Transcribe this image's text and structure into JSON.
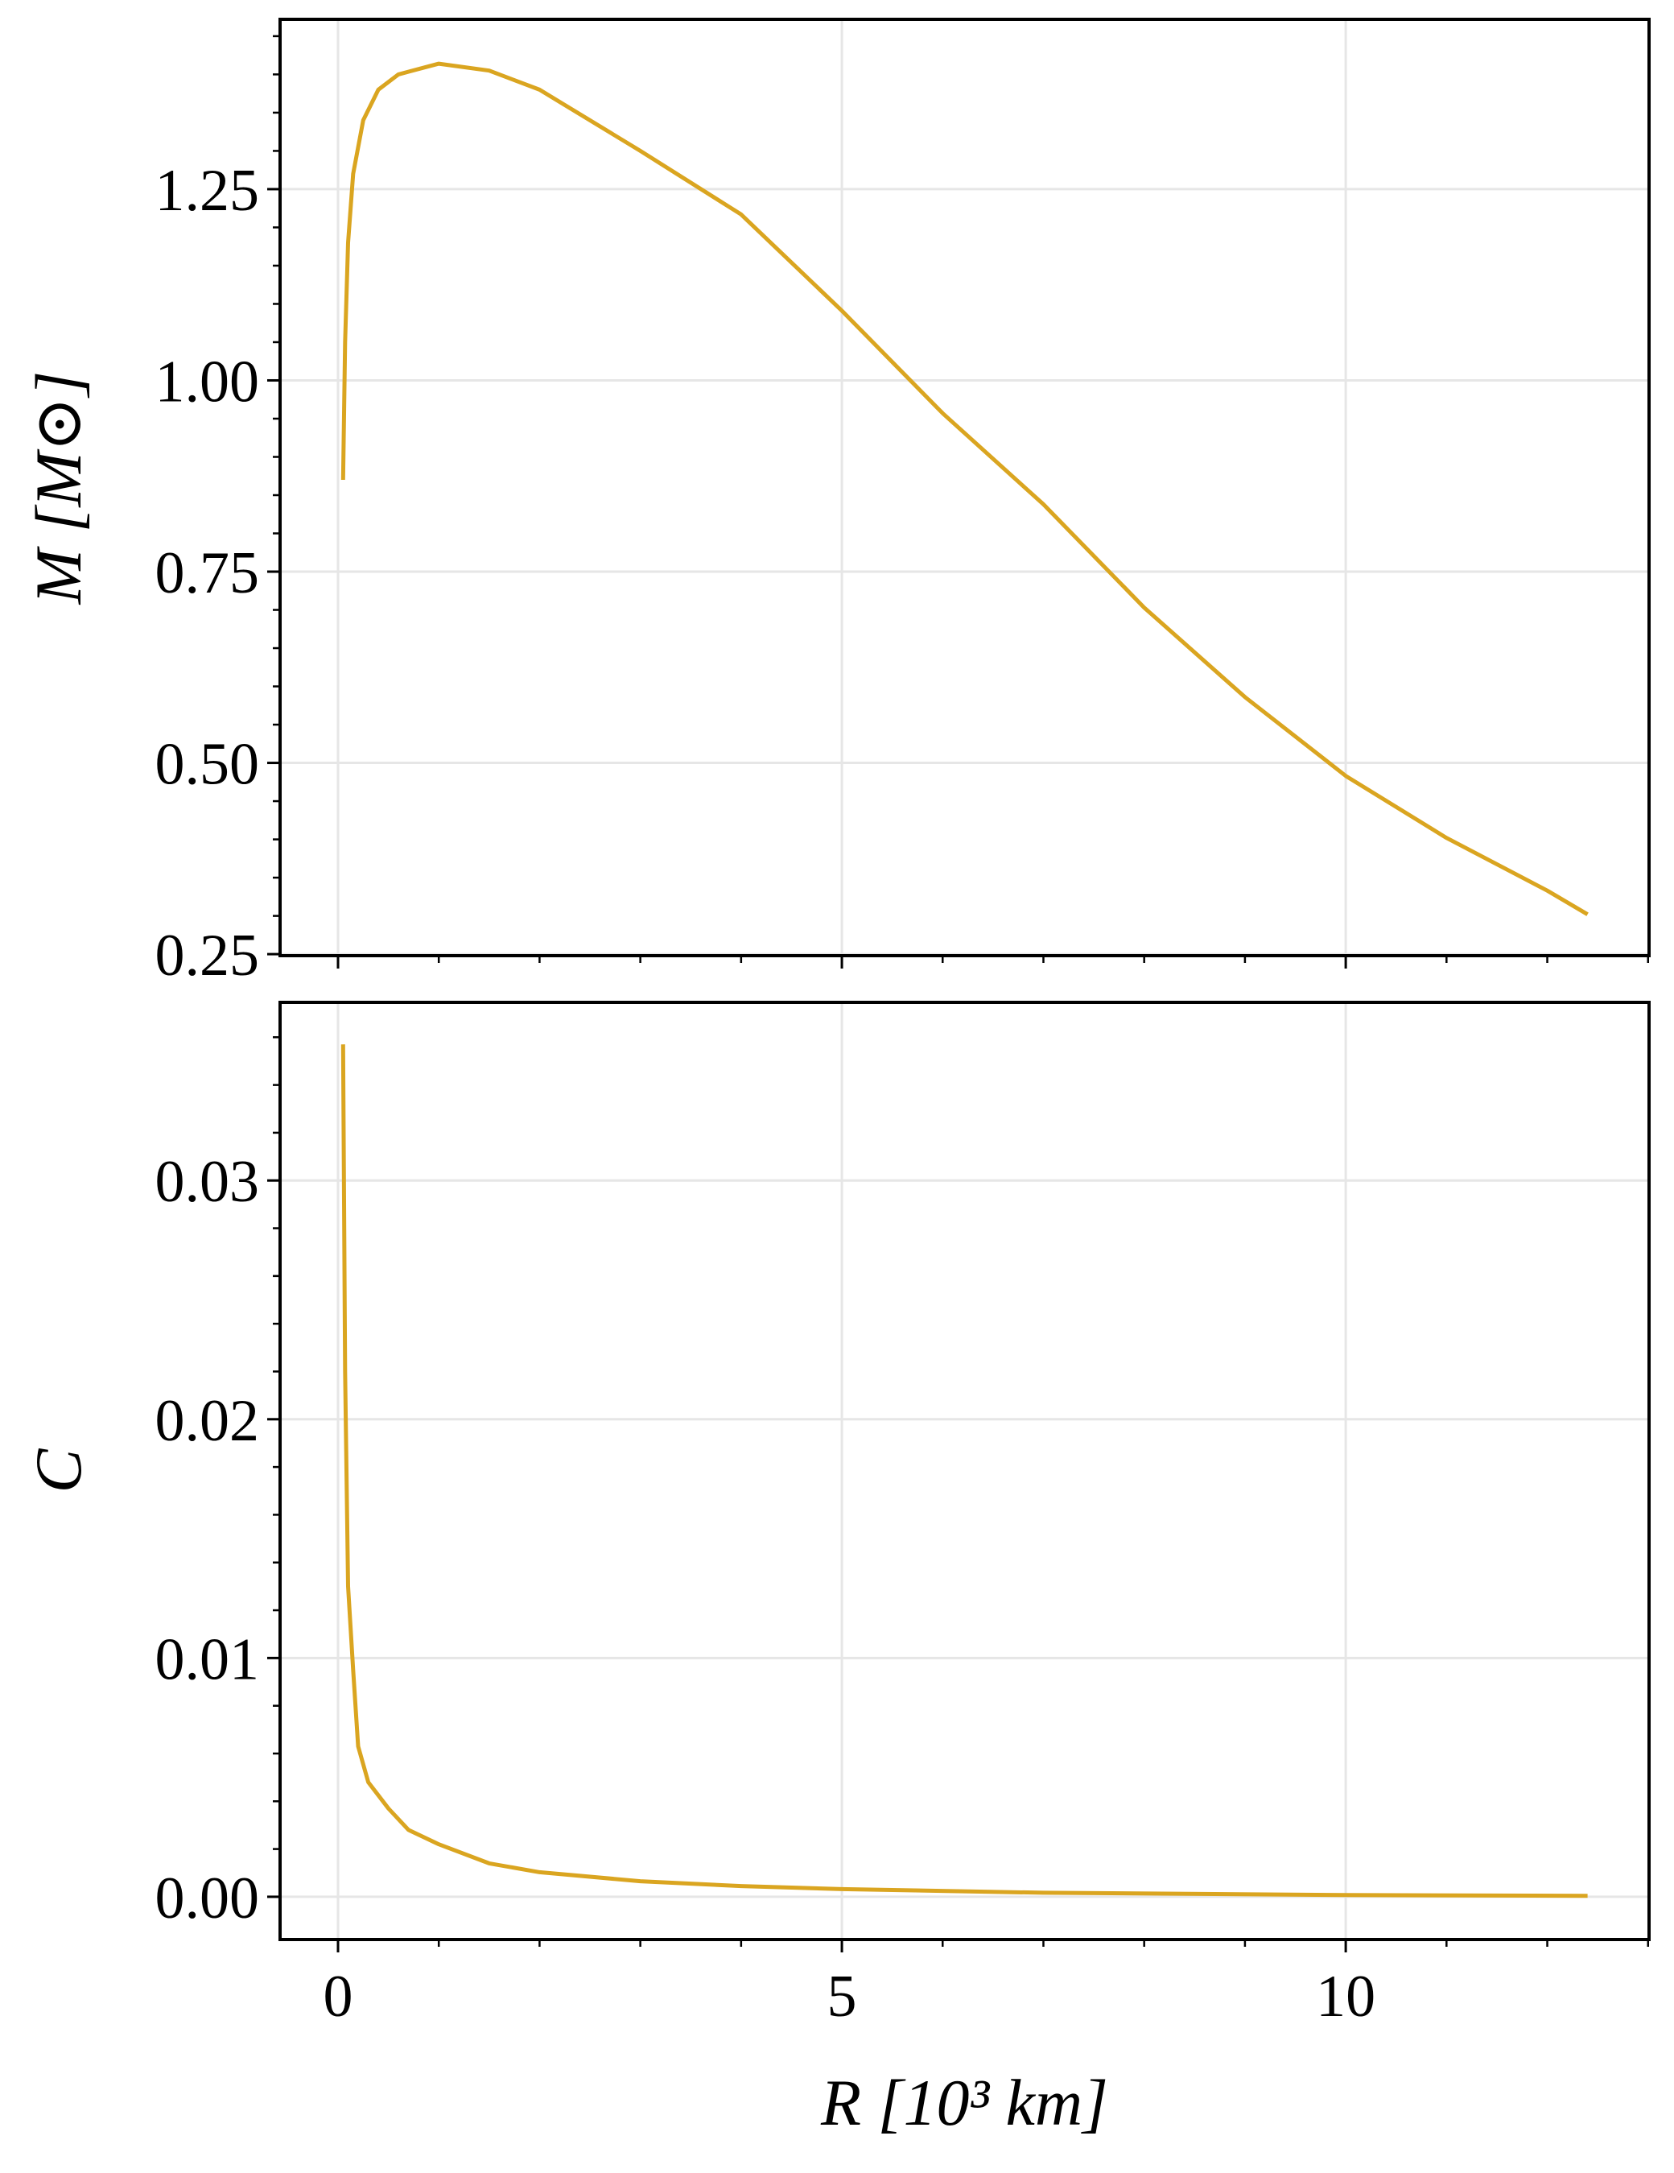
{
  "chart_data": [
    {
      "type": "line",
      "ylabel": "M [M⊙]",
      "x": [
        0.05,
        0.07,
        0.1,
        0.15,
        0.25,
        0.4,
        0.6,
        1.0,
        1.5,
        2,
        3,
        4,
        5,
        6,
        7,
        8,
        9,
        10,
        11,
        12,
        12.4
      ],
      "series": [
        {
          "color": "#daa520",
          "values": [
            0.87,
            1.05,
            1.18,
            1.27,
            1.34,
            1.38,
            1.4,
            1.414,
            1.405,
            1.38,
            1.3,
            1.217,
            1.091,
            0.957,
            0.838,
            0.703,
            0.586,
            0.483,
            0.402,
            0.333,
            0.302
          ]
        }
      ],
      "xlim": [
        -0.575,
        13.01
      ],
      "xticks": [
        0,
        5,
        10
      ],
      "show_xticklabels": false,
      "x_minor_ticks": [
        1,
        2,
        3,
        4,
        6,
        7,
        8,
        9,
        11,
        12,
        13
      ],
      "ylim": [
        0.248,
        1.472
      ],
      "yticks": [
        0.25,
        {
          "value": 0.5,
          "label": "0.50"
        },
        0.75,
        {
          "value": 1,
          "label": "1.00"
        },
        1.25
      ],
      "y_minor_ticks": [
        0.3,
        0.35,
        0.4,
        0.45,
        0.55,
        0.6,
        0.65,
        0.7,
        0.8,
        0.85,
        0.9,
        0.95,
        1.05,
        1.1,
        1.15,
        1.2,
        1.3,
        1.35,
        1.4,
        1.45
      ],
      "grid": true
    },
    {
      "type": "line",
      "ylabel": "C",
      "xlabel": "R [10³ km]",
      "x": [
        0.05,
        0.07,
        0.1,
        0.15,
        0.2,
        0.3,
        0.5,
        0.7,
        1.0,
        1.5,
        2,
        3,
        4,
        5,
        7,
        10,
        12.4
      ],
      "series": [
        {
          "color": "#daa520",
          "values": [
            0.0357,
            0.022,
            0.013,
            0.0095,
            0.0063,
            0.0048,
            0.0037,
            0.0028,
            0.0022,
            0.0014,
            0.00103,
            0.00065,
            0.00045,
            0.00032,
            0.00017,
            7e-05,
            4e-05
          ]
        }
      ],
      "xlim": [
        -0.575,
        13.01
      ],
      "xticks": [
        0,
        5,
        10
      ],
      "show_xticklabels": true,
      "x_minor_ticks": [
        1,
        2,
        3,
        4,
        6,
        7,
        8,
        9,
        11,
        12,
        13
      ],
      "ylim": [
        -0.00179,
        0.03746
      ],
      "yticks": [
        {
          "value": 0,
          "label": "0.00"
        },
        0.01,
        0.02,
        0.03
      ],
      "y_minor_ticks": [
        0.002,
        0.004,
        0.006,
        0.008,
        0.012,
        0.014,
        0.016,
        0.018,
        0.022,
        0.024,
        0.026,
        0.028,
        0.032,
        0.034,
        0.036
      ],
      "grid": true
    }
  ]
}
